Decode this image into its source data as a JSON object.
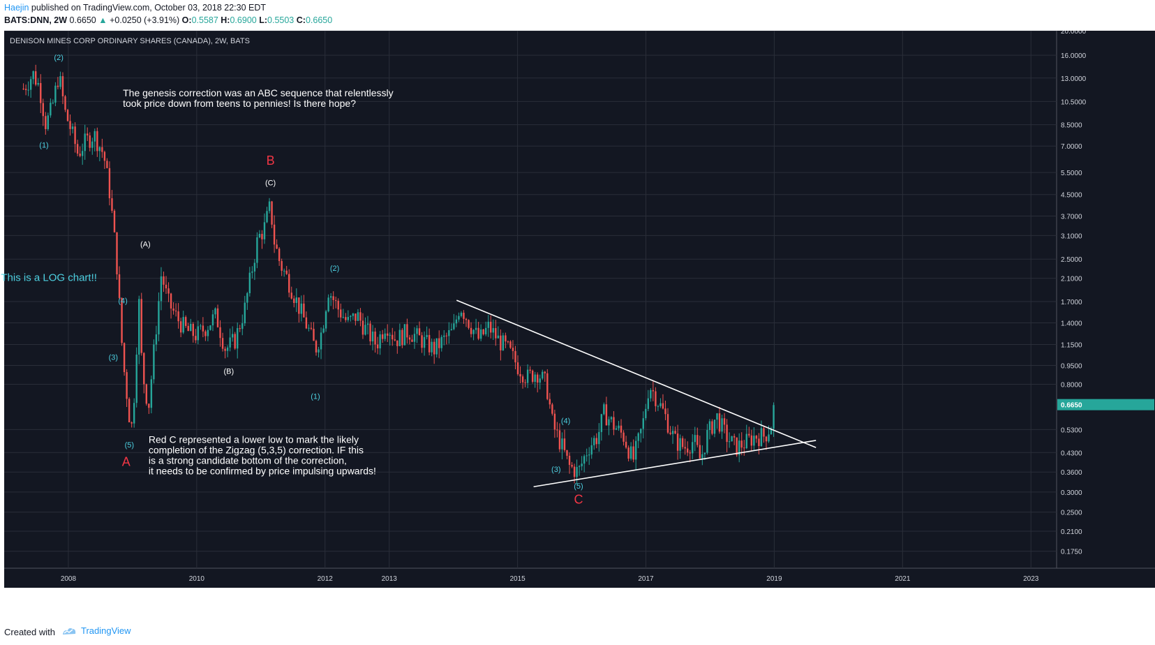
{
  "header": {
    "author": "Haejin",
    "published": "published on TradingView.com, October 03, 2018 22:30 EDT",
    "symbol": "BATS:DNN, 2W",
    "last": "0.6650",
    "change": "+0.0250 (+3.91%)",
    "o_label": "O:",
    "o_value": "0.5587",
    "h_label": "H:",
    "h_value": "0.6900",
    "l_label": "L:",
    "l_value": "0.5503",
    "c_label": "C:",
    "c_value": "0.6650"
  },
  "footer": {
    "created": "Created with",
    "brand": "TradingView"
  },
  "colors": {
    "background": "#131722",
    "grid": "#2a2e39",
    "up": "#26a69a",
    "down": "#ef5350",
    "cyan_text": "#4dd0e1",
    "red_text": "#f23645",
    "white": "#ffffff",
    "axis_text": "#d1d4dc",
    "price_tag": "#26a69a"
  },
  "chart_data": {
    "type": "candlestick",
    "title": "DENISON MINES CORP ORDINARY SHARES (CANADA), 2W, BATS",
    "y_scale": "log",
    "ylim": [
      0.15,
      20.0
    ],
    "y_ticks": [
      "20.0000",
      "16.0000",
      "13.0000",
      "10.5000",
      "8.5000",
      "7.0000",
      "5.5000",
      "4.5000",
      "3.7000",
      "3.1000",
      "2.5000",
      "2.1000",
      "1.7000",
      "1.4000",
      "1.1500",
      "0.9500",
      "0.8000",
      "0.6650",
      "0.5300",
      "0.4300",
      "0.3600",
      "0.3000",
      "0.2500",
      "0.2100",
      "0.1750"
    ],
    "x_range": [
      2007.0,
      2023.4
    ],
    "x_ticks": [
      "2008",
      "2010",
      "2012",
      "2013",
      "2015",
      "2017",
      "2019",
      "2021",
      "2023"
    ],
    "last_price": "0.6650",
    "price_path": [
      [
        2007.3,
        11.8
      ],
      [
        2007.45,
        13.5
      ],
      [
        2007.55,
        12.0
      ],
      [
        2007.65,
        8.5
      ],
      [
        2007.75,
        10.0
      ],
      [
        2007.85,
        13.5
      ],
      [
        2007.95,
        9.5
      ],
      [
        2008.05,
        8.0
      ],
      [
        2008.15,
        6.5
      ],
      [
        2008.25,
        7.2
      ],
      [
        2008.4,
        7.8
      ],
      [
        2008.55,
        6.5
      ],
      [
        2008.65,
        4.5
      ],
      [
        2008.75,
        2.5
      ],
      [
        2008.85,
        1.0
      ],
      [
        2008.95,
        0.6
      ],
      [
        2009.0,
        0.53
      ],
      [
        2009.05,
        1.0
      ],
      [
        2009.1,
        1.7
      ],
      [
        2009.15,
        0.9
      ],
      [
        2009.25,
        0.65
      ],
      [
        2009.35,
        1.2
      ],
      [
        2009.45,
        2.2
      ],
      [
        2009.55,
        1.7
      ],
      [
        2009.7,
        1.45
      ],
      [
        2009.85,
        1.3
      ],
      [
        2010.0,
        1.25
      ],
      [
        2010.15,
        1.35
      ],
      [
        2010.3,
        1.5
      ],
      [
        2010.45,
        1.1
      ],
      [
        2010.6,
        1.2
      ],
      [
        2010.75,
        1.6
      ],
      [
        2010.85,
        2.2
      ],
      [
        2010.95,
        3.0
      ],
      [
        2011.05,
        3.3
      ],
      [
        2011.15,
        4.1
      ],
      [
        2011.2,
        3.0
      ],
      [
        2011.3,
        2.4
      ],
      [
        2011.45,
        2.0
      ],
      [
        2011.6,
        1.6
      ],
      [
        2011.75,
        1.3
      ],
      [
        2011.85,
        1.1
      ],
      [
        2011.95,
        1.3
      ],
      [
        2012.05,
        1.9
      ],
      [
        2012.2,
        1.6
      ],
      [
        2012.35,
        1.4
      ],
      [
        2012.5,
        1.5
      ],
      [
        2012.65,
        1.3
      ],
      [
        2012.8,
        1.15
      ],
      [
        2012.95,
        1.4
      ],
      [
        2013.1,
        1.2
      ],
      [
        2013.3,
        1.3
      ],
      [
        2013.5,
        1.2
      ],
      [
        2013.7,
        1.1
      ],
      [
        2013.85,
        1.2
      ],
      [
        2014.0,
        1.3
      ],
      [
        2014.1,
        1.65
      ],
      [
        2014.25,
        1.4
      ],
      [
        2014.4,
        1.2
      ],
      [
        2014.55,
        1.35
      ],
      [
        2014.7,
        1.2
      ],
      [
        2014.85,
        1.1
      ],
      [
        2015.0,
        0.95
      ],
      [
        2015.15,
        0.85
      ],
      [
        2015.3,
        0.9
      ],
      [
        2015.45,
        0.8
      ],
      [
        2015.55,
        0.55
      ],
      [
        2015.7,
        0.45
      ],
      [
        2015.8,
        0.38
      ],
      [
        2015.95,
        0.36
      ],
      [
        2016.1,
        0.45
      ],
      [
        2016.25,
        0.5
      ],
      [
        2016.35,
        0.62
      ],
      [
        2016.5,
        0.55
      ],
      [
        2016.65,
        0.5
      ],
      [
        2016.8,
        0.4
      ],
      [
        2016.95,
        0.55
      ],
      [
        2017.05,
        0.8
      ],
      [
        2017.15,
        0.72
      ],
      [
        2017.3,
        0.6
      ],
      [
        2017.45,
        0.48
      ],
      [
        2017.6,
        0.45
      ],
      [
        2017.75,
        0.48
      ],
      [
        2017.85,
        0.4
      ],
      [
        2017.95,
        0.5
      ],
      [
        2018.1,
        0.6
      ],
      [
        2018.25,
        0.5
      ],
      [
        2018.4,
        0.45
      ],
      [
        2018.55,
        0.47
      ],
      [
        2018.7,
        0.5
      ],
      [
        2018.85,
        0.5
      ],
      [
        2018.95,
        0.55
      ],
      [
        2019.0,
        0.665
      ]
    ],
    "trendlines": [
      {
        "name": "upper",
        "from": [
          2014.05,
          1.72
        ],
        "to": [
          2019.65,
          0.45
        ]
      },
      {
        "name": "lower",
        "from": [
          2015.25,
          0.315
        ],
        "to": [
          2019.65,
          0.48
        ]
      }
    ],
    "wave_labels": [
      {
        "text": "(2)",
        "x": 2007.85,
        "y": 15.3,
        "color": "cyan"
      },
      {
        "text": "(1)",
        "x": 2007.62,
        "y": 6.9,
        "color": "cyan"
      },
      {
        "text": "(4)",
        "x": 2008.85,
        "y": 1.67,
        "color": "cyan"
      },
      {
        "text": "(3)",
        "x": 2008.7,
        "y": 1.0,
        "color": "cyan"
      },
      {
        "text": "(5)",
        "x": 2008.95,
        "y": 0.45,
        "color": "cyan"
      },
      {
        "text": "(A)",
        "x": 2009.2,
        "y": 2.8,
        "color": "white"
      },
      {
        "text": "(B)",
        "x": 2010.5,
        "y": 0.88,
        "color": "white"
      },
      {
        "text": "(C)",
        "x": 2011.15,
        "y": 4.9,
        "color": "white"
      },
      {
        "text": "(1)",
        "x": 2011.85,
        "y": 0.7,
        "color": "cyan"
      },
      {
        "text": "(2)",
        "x": 2012.15,
        "y": 2.25,
        "color": "cyan"
      },
      {
        "text": "(4)",
        "x": 2015.75,
        "y": 0.56,
        "color": "cyan"
      },
      {
        "text": "(3)",
        "x": 2015.6,
        "y": 0.36,
        "color": "cyan"
      },
      {
        "text": "(5)",
        "x": 2015.95,
        "y": 0.31,
        "color": "cyan"
      }
    ],
    "big_labels": [
      {
        "text": "B",
        "x": 2011.15,
        "y": 5.9,
        "color": "red"
      },
      {
        "text": "A",
        "x": 2008.9,
        "y": 0.38,
        "color": "red"
      },
      {
        "text": "C",
        "x": 2015.95,
        "y": 0.27,
        "color": "red"
      }
    ],
    "annotations": [
      {
        "lines": [
          "The genesis correction was an ABC sequence that relentlessly",
          "took price down from teens to pennies! Is there hope?"
        ],
        "x": 2008.85,
        "y": 11.0,
        "color": "white"
      },
      {
        "lines": [
          "This is a LOG chart!!"
        ],
        "x": 2006.95,
        "y": 2.05,
        "color": "cyan"
      },
      {
        "lines": [
          "Red C represented a lower low to mark the likely",
          "completion of the Zigzag (5,3,5) correction. IF this",
          "is a strong candidate bottom of the correction,",
          "it needs to be confirmed by price impulsing upwards!"
        ],
        "x": 2009.25,
        "y": 0.47,
        "color": "white"
      }
    ]
  }
}
